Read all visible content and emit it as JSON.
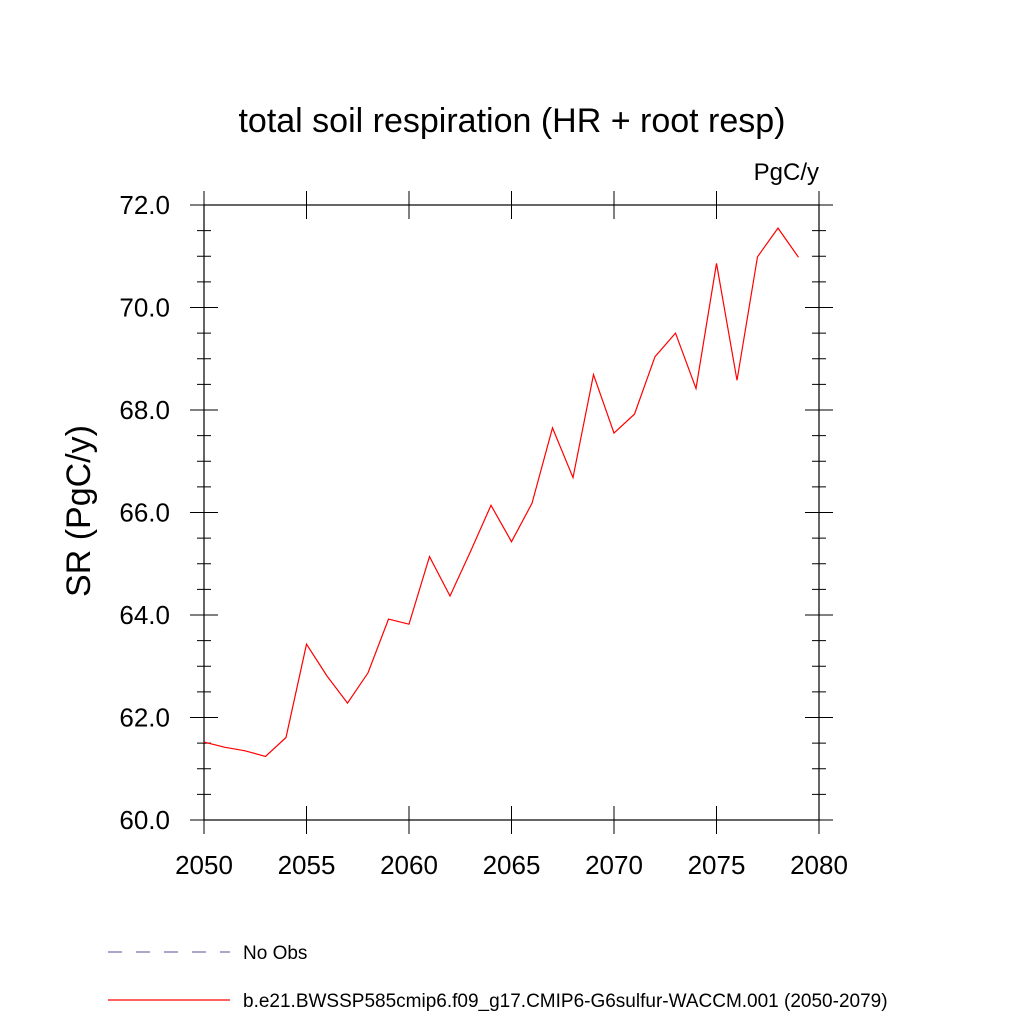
{
  "chart_data": {
    "type": "line",
    "title": "total soil respiration (HR + root resp)",
    "units": "PgC/y",
    "xlabel": "",
    "ylabel": "SR  (PgC/y)",
    "xlim": [
      2050,
      2080
    ],
    "ylim": [
      60.0,
      72.0
    ],
    "xticks": [
      "2050",
      "2055",
      "2060",
      "2065",
      "2070",
      "2075",
      "2080"
    ],
    "yticks": [
      "60.0",
      "62.0",
      "64.0",
      "66.0",
      "68.0",
      "70.0",
      "72.0"
    ],
    "grid": false,
    "legend_position": "bottom",
    "series": [
      {
        "name": "b.e21.BWSSP585cmip6.f09_g17.CMIP6-G6sulfur-WACCM.001 (2050-2079)",
        "color": "#ff0000",
        "style": "solid",
        "x": [
          2050,
          2051,
          2052,
          2053,
          2054,
          2055,
          2056,
          2057,
          2058,
          2059,
          2060,
          2061,
          2062,
          2063,
          2064,
          2065,
          2066,
          2067,
          2068,
          2069,
          2070,
          2071,
          2072,
          2073,
          2074,
          2075,
          2076,
          2077,
          2078,
          2079
        ],
        "values": [
          61.52,
          61.42,
          61.35,
          61.24,
          61.61,
          63.43,
          62.81,
          62.28,
          62.87,
          63.92,
          63.82,
          65.14,
          64.37,
          65.24,
          66.14,
          65.43,
          66.18,
          67.65,
          66.68,
          68.69,
          67.55,
          67.92,
          69.04,
          69.5,
          68.42,
          70.86,
          68.58,
          70.99,
          71.55,
          70.98
        ]
      }
    ],
    "legend": [
      {
        "label": "No Obs",
        "color": "#7a6fb0",
        "style": "dashed"
      },
      {
        "label": "b.e21.BWSSP585cmip6.f09_g17.CMIP6-G6sulfur-WACCM.001 (2050-2079)",
        "color": "#ff0000",
        "style": "solid"
      }
    ]
  }
}
